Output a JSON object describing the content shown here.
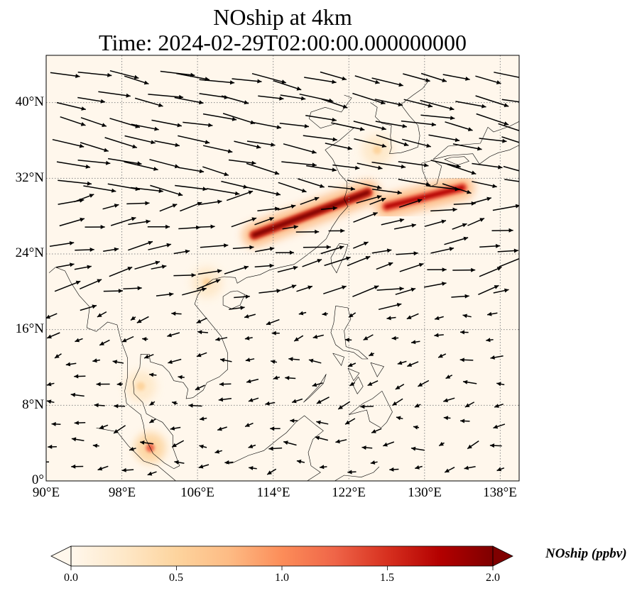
{
  "title": {
    "line1": "NOship at 4km",
    "line2": "Time: 2024-02-29T02:00:00.000000000"
  },
  "map": {
    "projection": "PlateCarree",
    "lon_range": [
      90,
      140
    ],
    "lat_range": [
      0,
      45
    ],
    "gridlines": "dotted",
    "x_ticks": [
      "90°E",
      "98°E",
      "106°E",
      "114°E",
      "122°E",
      "130°E",
      "138°E"
    ],
    "y_ticks": [
      "0°",
      "8°N",
      "16°N",
      "24°N",
      "32°N",
      "40°N"
    ],
    "features": [
      "coastlines",
      "country borders",
      "wind vectors"
    ]
  },
  "colorbar": {
    "label": "NOship (ppbv)",
    "colormap": "OrRd",
    "ticks": [
      "0.0",
      "0.5",
      "1.0",
      "1.5",
      "2.0"
    ],
    "range": [
      0,
      2.0
    ],
    "extend": "both",
    "colors": [
      "#fff7ec",
      "#fee8c8",
      "#fdd49e",
      "#fdbb84",
      "#fc8d59",
      "#ef6548",
      "#d7301f",
      "#b30000",
      "#7f0000"
    ]
  },
  "field_hotspots": [
    {
      "name": "East China Sea shipping lane",
      "lon_start": 112,
      "lat_start": 26,
      "lon_end": 124,
      "lat_end": 30.5,
      "level": 2.0
    },
    {
      "name": "Korea-Japan strait lane",
      "lon_start": 126,
      "lat_start": 29,
      "lon_end": 134,
      "lat_end": 31,
      "level": 1.8
    },
    {
      "name": "Korea west coast",
      "lon": 125,
      "lat": 35,
      "level": 0.6
    },
    {
      "name": "Gulf of Tonkin",
      "lon": 107,
      "lat": 21,
      "level": 0.5
    },
    {
      "name": "Strait of Malacca",
      "lon": 101,
      "lat": 3.5,
      "level": 1.2
    },
    {
      "name": "Gulf of Thailand",
      "lon": 100,
      "lat": 10,
      "level": 0.4
    }
  ],
  "wind": {
    "regimes": [
      {
        "region": "north (lat > 30)",
        "direction": "east-southeast",
        "strength": "strong"
      },
      {
        "region": "mid (lat 18-30)",
        "direction": "east-northeast",
        "strength": "moderate"
      },
      {
        "region": "south (lat < 18)",
        "direction": "west / west-southwest",
        "strength": "weak"
      }
    ]
  }
}
